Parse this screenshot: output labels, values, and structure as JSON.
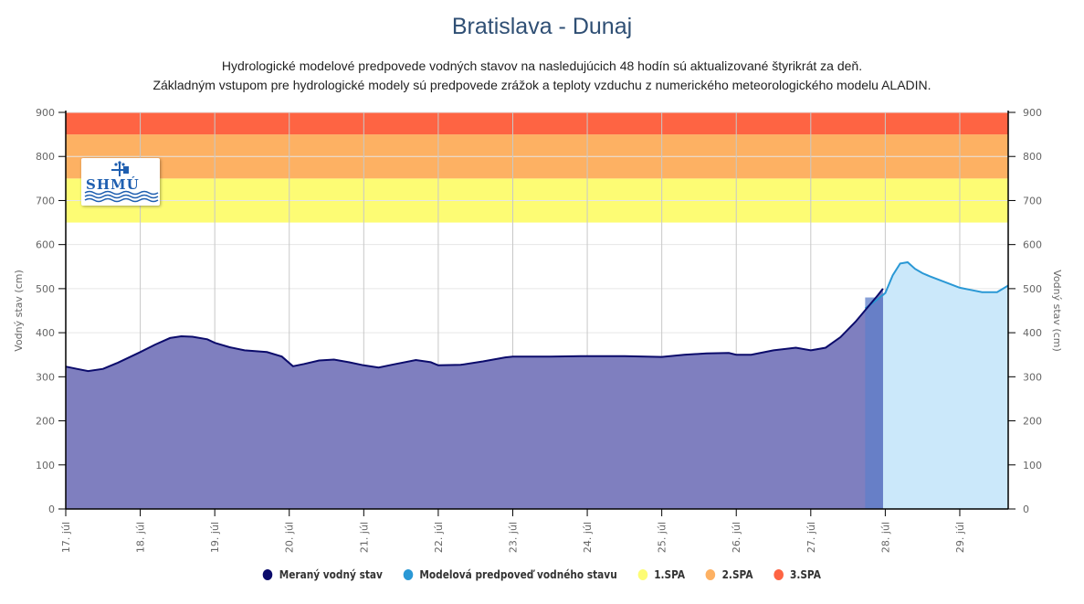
{
  "header": {
    "title": "Bratislava - Dunaj",
    "subtitle_line1": "Hydrologické modelové predpovede vodných stavov na nasledujúcich 48 hodín sú aktualizované štyrikrát za deň.",
    "subtitle_line2": "Základným vstupom pre hydrologické modely sú predpovede zrážok a teploty vzduchu z numerického meteorologického modelu ALADIN."
  },
  "logo": {
    "text": "SHMÚ",
    "icon": "weather-vane-waves-logo"
  },
  "chart_data": {
    "type": "area",
    "title": "Bratislava - Dunaj",
    "xlabel": "",
    "ylabel": "Vodný stav (cm)",
    "ylabel_right": "Vodný stav (cm)",
    "ylim": [
      0,
      900
    ],
    "xlim": [
      17,
      29.65
    ],
    "y_ticks": [
      0,
      100,
      200,
      300,
      400,
      500,
      600,
      700,
      800,
      900
    ],
    "x_ticks": [
      {
        "value": 17,
        "label": "17. júl"
      },
      {
        "value": 18,
        "label": "18. júl"
      },
      {
        "value": 19,
        "label": "19. júl"
      },
      {
        "value": 20,
        "label": "20. júl"
      },
      {
        "value": 21,
        "label": "21. júl"
      },
      {
        "value": 22,
        "label": "22. júl"
      },
      {
        "value": 23,
        "label": "23. júl"
      },
      {
        "value": 24,
        "label": "24. júl"
      },
      {
        "value": 25,
        "label": "25. júl"
      },
      {
        "value": 26,
        "label": "26. júl"
      },
      {
        "value": 27,
        "label": "27. júl"
      },
      {
        "value": 28,
        "label": "28. júl"
      },
      {
        "value": 29,
        "label": "29. júl"
      }
    ],
    "grid": true,
    "legend_position": "bottom-center",
    "bands": [
      {
        "name": "1.SPA",
        "from": 650,
        "to": 750,
        "color": "#fdfc74"
      },
      {
        "name": "2.SPA",
        "from": 750,
        "to": 850,
        "color": "#fdb163"
      },
      {
        "name": "3.SPA",
        "from": 850,
        "to": 900,
        "color": "#fe6443"
      }
    ],
    "series": [
      {
        "name": "Meraný vodný stav",
        "color": "#0b0b6b",
        "fill": "#7f7fbf",
        "x": [
          17.0,
          17.15,
          17.3,
          17.5,
          17.7,
          18.0,
          18.2,
          18.4,
          18.55,
          18.7,
          18.9,
          19.0,
          19.2,
          19.4,
          19.7,
          19.9,
          20.05,
          20.2,
          20.4,
          20.6,
          20.8,
          21.0,
          21.2,
          21.4,
          21.7,
          21.9,
          22.0,
          22.3,
          22.6,
          22.9,
          23.0,
          23.5,
          24.0,
          24.5,
          25.0,
          25.3,
          25.6,
          25.9,
          26.0,
          26.2,
          26.5,
          26.8,
          27.0,
          27.2,
          27.4,
          27.6,
          27.75,
          27.9,
          27.97
        ],
        "values": [
          323,
          318,
          313,
          318,
          332,
          356,
          373,
          388,
          392,
          391,
          385,
          377,
          367,
          360,
          356,
          346,
          324,
          329,
          337,
          339,
          333,
          326,
          321,
          328,
          338,
          333,
          326,
          327,
          335,
          344,
          346,
          346,
          347,
          347,
          345,
          350,
          353,
          354,
          350,
          350,
          360,
          366,
          360,
          366,
          390,
          425,
          455,
          485,
          500
        ]
      },
      {
        "name": "Modelová predpoveď vodného stavu",
        "color": "#2a98d5",
        "fill": "#cbe8fa",
        "x": [
          27.73,
          27.85,
          28.0,
          28.1,
          28.2,
          28.3,
          28.4,
          28.5,
          28.6,
          28.8,
          29.0,
          29.15,
          29.3,
          29.5,
          29.65
        ],
        "values": [
          455,
          470,
          490,
          530,
          557,
          560,
          545,
          535,
          528,
          515,
          502,
          497,
          492,
          492,
          507
        ]
      },
      {
        "name": "1.SPA",
        "color": "#fdfc74"
      },
      {
        "name": "2.SPA",
        "color": "#fdb163"
      },
      {
        "name": "3.SPA",
        "color": "#fe6443"
      }
    ]
  },
  "legend": [
    {
      "label": "Meraný vodný stav",
      "color": "#0b0b6b"
    },
    {
      "label": "Modelová predpoveď vodného stavu",
      "color": "#2a98d5"
    },
    {
      "label": "1.SPA",
      "color": "#fdfc74"
    },
    {
      "label": "2.SPA",
      "color": "#fdb163"
    },
    {
      "label": "3.SPA",
      "color": "#fe6443"
    }
  ]
}
